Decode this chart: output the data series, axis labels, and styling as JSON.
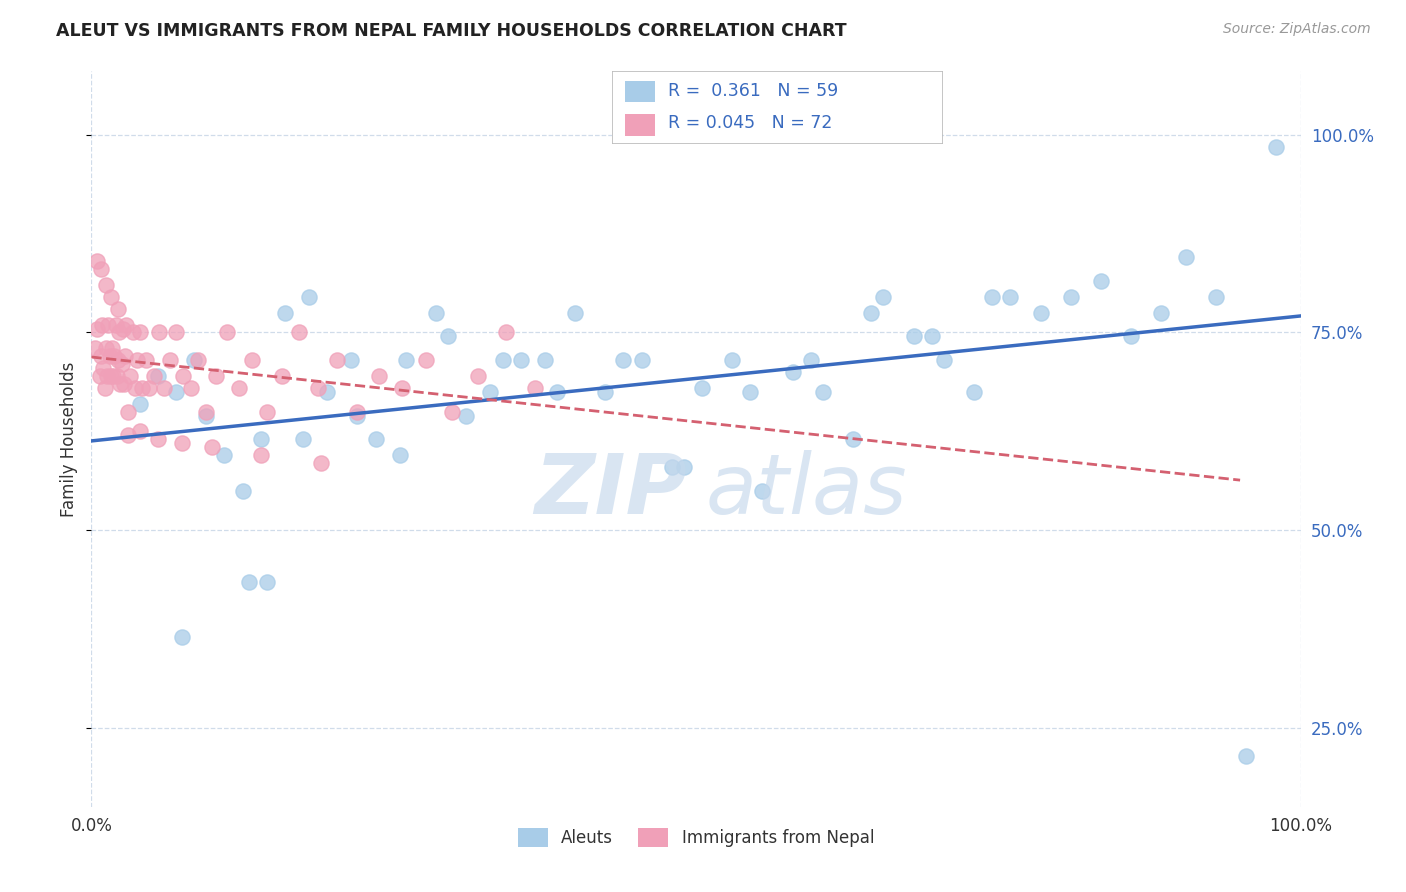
{
  "title": "ALEUT VS IMMIGRANTS FROM NEPAL FAMILY HOUSEHOLDS CORRELATION CHART",
  "source_text": "Source: ZipAtlas.com",
  "ylabel": "Family Households",
  "legend_label1": "Aleuts",
  "legend_label2": "Immigrants from Nepal",
  "legend_r1": "R =  0.361",
  "legend_n1": "N = 59",
  "legend_r2": "R = 0.045",
  "legend_n2": "N = 72",
  "color_blue": "#a8cce8",
  "color_pink": "#f0a0b8",
  "color_blue_line": "#3a6bbf",
  "color_pink_line": "#d46070",
  "color_legend_text": "#3a6bbf",
  "color_right_ticks": "#3a6bbf",
  "color_text": "#333333",
  "color_grid": "#d0dcea",
  "background_color": "#ffffff",
  "watermark_zip_color": "#c5d8ec",
  "watermark_atlas_color": "#c5d8ec",
  "xlim": [
    0.0,
    1.0
  ],
  "ylim": [
    0.15,
    1.08
  ],
  "y_ticks": [
    0.25,
    0.5,
    0.75,
    1.0
  ],
  "y_tick_labels": [
    "25.0%",
    "50.0%",
    "75.0%",
    "100.0%"
  ],
  "x_ticks": [
    0.0,
    1.0
  ],
  "x_tick_labels": [
    "0.0%",
    "100.0%"
  ],
  "aleuts_x": [
    0.04,
    0.055,
    0.07,
    0.085,
    0.095,
    0.11,
    0.125,
    0.14,
    0.16,
    0.175,
    0.195,
    0.215,
    0.235,
    0.26,
    0.285,
    0.31,
    0.33,
    0.355,
    0.375,
    0.4,
    0.425,
    0.455,
    0.48,
    0.505,
    0.53,
    0.555,
    0.58,
    0.605,
    0.63,
    0.655,
    0.68,
    0.705,
    0.73,
    0.76,
    0.785,
    0.81,
    0.835,
    0.86,
    0.885,
    0.905,
    0.93,
    0.955,
    0.98,
    0.075,
    0.13,
    0.145,
    0.18,
    0.22,
    0.255,
    0.295,
    0.34,
    0.385,
    0.44,
    0.49,
    0.545,
    0.595,
    0.645,
    0.695,
    0.745
  ],
  "aleuts_y": [
    0.66,
    0.695,
    0.675,
    0.715,
    0.645,
    0.595,
    0.55,
    0.615,
    0.775,
    0.615,
    0.675,
    0.715,
    0.615,
    0.715,
    0.775,
    0.645,
    0.675,
    0.715,
    0.715,
    0.775,
    0.675,
    0.715,
    0.58,
    0.68,
    0.715,
    0.55,
    0.7,
    0.675,
    0.615,
    0.795,
    0.745,
    0.715,
    0.675,
    0.795,
    0.775,
    0.795,
    0.815,
    0.745,
    0.775,
    0.845,
    0.795,
    0.215,
    0.985,
    0.365,
    0.435,
    0.435,
    0.795,
    0.645,
    0.595,
    0.745,
    0.715,
    0.675,
    0.715,
    0.58,
    0.675,
    0.715,
    0.775,
    0.745,
    0.795
  ],
  "nepal_x": [
    0.003,
    0.005,
    0.007,
    0.008,
    0.009,
    0.01,
    0.011,
    0.012,
    0.013,
    0.014,
    0.015,
    0.016,
    0.017,
    0.018,
    0.019,
    0.02,
    0.021,
    0.022,
    0.023,
    0.024,
    0.025,
    0.026,
    0.027,
    0.028,
    0.029,
    0.03,
    0.032,
    0.034,
    0.036,
    0.038,
    0.04,
    0.042,
    0.045,
    0.048,
    0.052,
    0.056,
    0.06,
    0.065,
    0.07,
    0.076,
    0.082,
    0.088,
    0.095,
    0.103,
    0.112,
    0.122,
    0.133,
    0.145,
    0.158,
    0.172,
    0.187,
    0.203,
    0.22,
    0.238,
    0.257,
    0.277,
    0.298,
    0.32,
    0.343,
    0.367,
    0.005,
    0.008,
    0.012,
    0.016,
    0.022,
    0.03,
    0.04,
    0.055,
    0.075,
    0.1,
    0.14,
    0.19
  ],
  "nepal_y": [
    0.73,
    0.755,
    0.695,
    0.72,
    0.76,
    0.705,
    0.68,
    0.73,
    0.695,
    0.76,
    0.72,
    0.695,
    0.73,
    0.695,
    0.72,
    0.76,
    0.695,
    0.715,
    0.75,
    0.685,
    0.71,
    0.755,
    0.685,
    0.72,
    0.76,
    0.65,
    0.695,
    0.75,
    0.68,
    0.715,
    0.75,
    0.68,
    0.715,
    0.68,
    0.695,
    0.75,
    0.68,
    0.715,
    0.75,
    0.695,
    0.68,
    0.715,
    0.65,
    0.695,
    0.75,
    0.68,
    0.715,
    0.65,
    0.695,
    0.75,
    0.68,
    0.715,
    0.65,
    0.695,
    0.68,
    0.715,
    0.65,
    0.695,
    0.75,
    0.68,
    0.84,
    0.83,
    0.81,
    0.795,
    0.78,
    0.62,
    0.625,
    0.615,
    0.61,
    0.605,
    0.595,
    0.585
  ]
}
